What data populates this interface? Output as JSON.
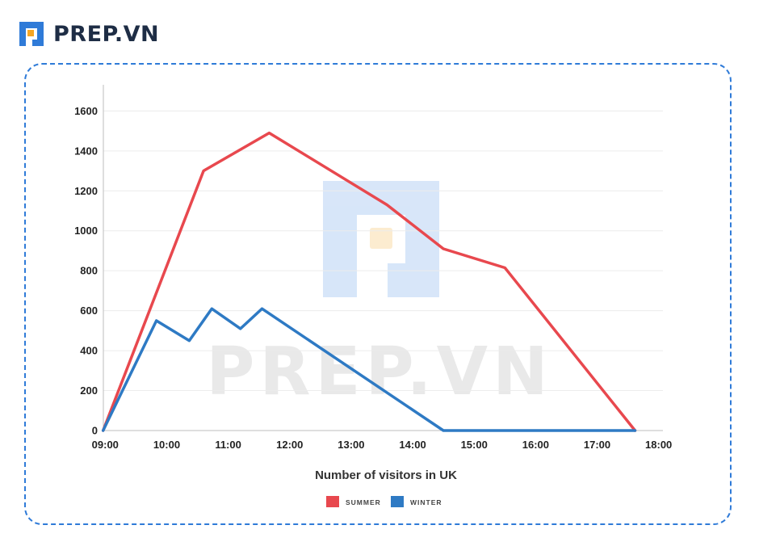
{
  "brand": {
    "name": "PREP.VN",
    "logo_icon": "prep-logo-icon",
    "colors": {
      "blue": "#2f7bd8",
      "orange": "#f6a623",
      "text": "#1e2d45"
    }
  },
  "watermark": {
    "text": "PREP.VN",
    "icon": "prep-logo-watermark-icon"
  },
  "chart_data": {
    "type": "line",
    "title": "",
    "xlabel": "Number of visitors in UK",
    "ylabel": "",
    "x_ticks": [
      "09:00",
      "10:00",
      "11:00",
      "12:00",
      "13:00",
      "14:00",
      "15:00",
      "16:00",
      "17:00",
      "18:00"
    ],
    "y_ticks": [
      0,
      200,
      400,
      600,
      800,
      1000,
      1200,
      1400,
      1600
    ],
    "xlim": [
      8.97,
      18.07
    ],
    "ylim": [
      0,
      1650
    ],
    "grid": true,
    "legend_position": "bottom",
    "series": [
      {
        "name": "SUMMER",
        "color": "#e8484e",
        "points": [
          {
            "x": "08:58",
            "y": 0
          },
          {
            "x": "10:36",
            "y": 1300
          },
          {
            "x": "11:40",
            "y": 1490
          },
          {
            "x": "13:35",
            "y": 1130
          },
          {
            "x": "14:30",
            "y": 910
          },
          {
            "x": "15:30",
            "y": 815
          },
          {
            "x": "17:37",
            "y": 0
          }
        ]
      },
      {
        "name": "WINTER",
        "color": "#2e7ac4",
        "points": [
          {
            "x": "08:58",
            "y": 0
          },
          {
            "x": "09:50",
            "y": 550
          },
          {
            "x": "10:22",
            "y": 450
          },
          {
            "x": "10:44",
            "y": 610
          },
          {
            "x": "11:12",
            "y": 510
          },
          {
            "x": "11:33",
            "y": 610
          },
          {
            "x": "14:30",
            "y": 0
          },
          {
            "x": "17:37",
            "y": 0
          }
        ]
      }
    ]
  }
}
